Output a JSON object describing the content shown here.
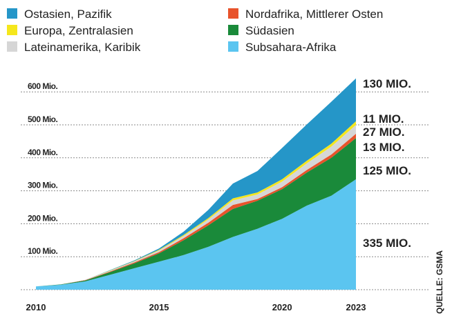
{
  "chart_data": {
    "type": "area",
    "stacked": true,
    "x": [
      2010,
      2011,
      2012,
      2013,
      2014,
      2015,
      2016,
      2017,
      2018,
      2019,
      2020,
      2021,
      2022,
      2023
    ],
    "series": [
      {
        "name": "Subsahara-Afrika",
        "color": "#5bc5f0",
        "values": [
          10,
          15,
          25,
          45,
          65,
          85,
          105,
          130,
          160,
          185,
          215,
          255,
          285,
          335
        ],
        "end_label": "335 MIO."
      },
      {
        "name": "Südasien",
        "color": "#1a8a3a",
        "values": [
          0,
          1,
          3,
          8,
          15,
          25,
          45,
          65,
          85,
          85,
          90,
          100,
          115,
          125
        ],
        "end_label": "125 MIO."
      },
      {
        "name": "Nordafrika, Mittlerer Osten",
        "color": "#e8532b",
        "values": [
          0,
          0,
          1,
          2,
          3,
          4,
          6,
          8,
          12,
          5,
          6,
          8,
          10,
          13
        ],
        "end_label": "13 MIO."
      },
      {
        "name": "Lateinamerika, Karibik",
        "color": "#d6d6d6",
        "values": [
          0,
          0,
          1,
          2,
          3,
          5,
          7,
          10,
          14,
          14,
          17,
          20,
          24,
          27
        ],
        "end_label": "27 MIO."
      },
      {
        "name": "Europa, Zentralasien",
        "color": "#f5e71c",
        "values": [
          0,
          0,
          0,
          1,
          1,
          2,
          3,
          4,
          6,
          6,
          7,
          8,
          9,
          11
        ],
        "end_label": "11 MIO."
      },
      {
        "name": "Ostasien, Pazifik",
        "color": "#2596c8",
        "values": [
          0,
          0,
          0,
          1,
          2,
          4,
          10,
          25,
          45,
          65,
          95,
          110,
          127,
          130
        ],
        "end_label": "130 MIO."
      }
    ],
    "legend": [
      {
        "name": "Ostasien, Pazifik",
        "color": "#2596c8"
      },
      {
        "name": "Europa, Zentralasien",
        "color": "#f5e71c"
      },
      {
        "name": "Lateinamerika, Karibik",
        "color": "#d6d6d6"
      },
      {
        "name": "Nordafrika, Mittlerer Osten",
        "color": "#e8532b"
      },
      {
        "name": "Südasien",
        "color": "#1a8a3a"
      },
      {
        "name": "Subsahara-Afrika",
        "color": "#5bc5f0"
      }
    ],
    "legend_placement": "top",
    "yticks": [
      {
        "v": 100,
        "label": "100 Mio."
      },
      {
        "v": 200,
        "label": "200 Mio."
      },
      {
        "v": 300,
        "label": "300 Mio."
      },
      {
        "v": 400,
        "label": "400 Mio."
      },
      {
        "v": 500,
        "label": "500 Mio."
      },
      {
        "v": 600,
        "label": "600 Mio."
      }
    ],
    "xticks": [
      {
        "v": 2010,
        "label": "2010"
      },
      {
        "v": 2015,
        "label": "2015"
      },
      {
        "v": 2020,
        "label": "2020"
      },
      {
        "v": 2023,
        "label": "2023"
      }
    ],
    "ylim": [
      0,
      650
    ],
    "xlim": [
      2010,
      2023
    ],
    "grid": "horizontal dotted",
    "source": "QUELLE: GSMA"
  }
}
